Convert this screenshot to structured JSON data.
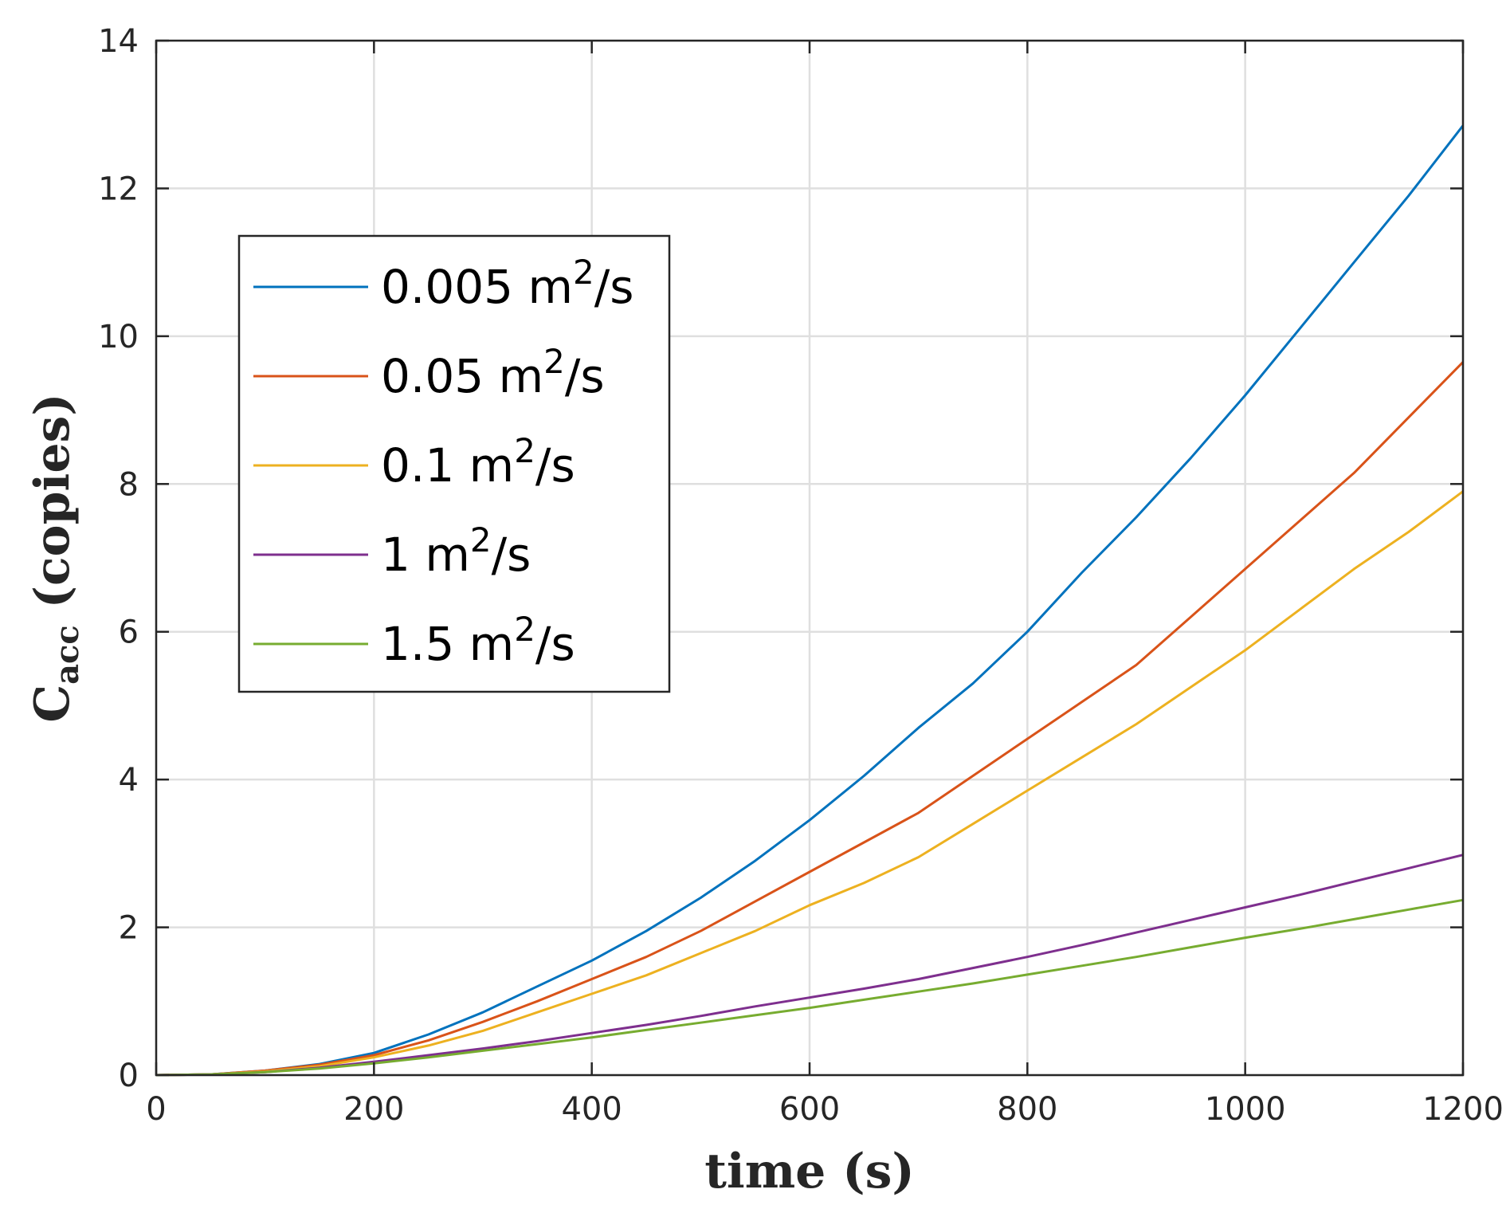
{
  "chart_data": {
    "type": "line",
    "title": "",
    "xlabel": "time (s)",
    "ylabel": {
      "main": "C",
      "subscript": "acc",
      "rest": " (copies)"
    },
    "xlim": [
      0,
      1200
    ],
    "ylim": [
      0,
      14
    ],
    "xticks": [
      0,
      200,
      400,
      600,
      800,
      1000,
      1200
    ],
    "yticks": [
      0,
      2,
      4,
      6,
      8,
      10,
      12,
      14
    ],
    "grid": true,
    "legend_position": "upper-left",
    "series": [
      {
        "name": "0.005 m²/s",
        "name_base": "0.005 m",
        "name_sup": "2",
        "name_tail": "/s",
        "color": "#0072BD",
        "x": [
          0,
          50,
          100,
          150,
          200,
          250,
          300,
          350,
          400,
          450,
          500,
          550,
          600,
          650,
          700,
          750,
          800,
          850,
          900,
          950,
          1000,
          1050,
          1100,
          1150,
          1200
        ],
        "y": [
          0,
          0.01,
          0.06,
          0.15,
          0.3,
          0.55,
          0.85,
          1.2,
          1.55,
          1.95,
          2.4,
          2.9,
          3.45,
          4.05,
          4.7,
          5.3,
          6.0,
          6.8,
          7.55,
          8.35,
          9.2,
          10.1,
          11.0,
          11.9,
          12.85
        ]
      },
      {
        "name": "0.05 m²/s",
        "name_base": "0.05 m",
        "name_sup": "2",
        "name_tail": "/s",
        "color": "#D95319",
        "x": [
          0,
          50,
          100,
          150,
          200,
          250,
          300,
          350,
          400,
          450,
          500,
          550,
          600,
          650,
          700,
          750,
          800,
          850,
          900,
          950,
          1000,
          1050,
          1100,
          1150,
          1200
        ],
        "y": [
          0,
          0.01,
          0.06,
          0.14,
          0.27,
          0.47,
          0.72,
          1.0,
          1.3,
          1.6,
          1.95,
          2.35,
          2.75,
          3.15,
          3.55,
          4.05,
          4.55,
          5.05,
          5.55,
          6.2,
          6.85,
          7.5,
          8.15,
          8.9,
          9.65
        ]
      },
      {
        "name": "0.1 m²/s",
        "name_base": "0.1 m",
        "name_sup": "2",
        "name_tail": "/s",
        "color": "#EDB120",
        "x": [
          0,
          50,
          100,
          150,
          200,
          250,
          300,
          350,
          400,
          450,
          500,
          550,
          600,
          650,
          700,
          750,
          800,
          850,
          900,
          950,
          1000,
          1050,
          1100,
          1150,
          1200
        ],
        "y": [
          0,
          0.01,
          0.05,
          0.12,
          0.24,
          0.4,
          0.6,
          0.85,
          1.1,
          1.35,
          1.65,
          1.95,
          2.3,
          2.6,
          2.95,
          3.4,
          3.85,
          4.3,
          4.75,
          5.25,
          5.75,
          6.3,
          6.85,
          7.35,
          7.9
        ]
      },
      {
        "name": "1 m²/s",
        "name_base": "1 m",
        "name_sup": "2",
        "name_tail": "/s",
        "color": "#7E2F8E",
        "x": [
          0,
          50,
          100,
          150,
          200,
          250,
          300,
          350,
          400,
          450,
          500,
          550,
          600,
          650,
          700,
          750,
          800,
          850,
          900,
          950,
          1000,
          1050,
          1100,
          1150,
          1200
        ],
        "y": [
          0,
          0.01,
          0.04,
          0.1,
          0.18,
          0.27,
          0.36,
          0.46,
          0.57,
          0.68,
          0.8,
          0.93,
          1.05,
          1.17,
          1.3,
          1.45,
          1.6,
          1.76,
          1.93,
          2.1,
          2.27,
          2.44,
          2.62,
          2.8,
          2.98
        ]
      },
      {
        "name": "1.5 m²/s",
        "name_base": "1.5 m",
        "name_sup": "2",
        "name_tail": "/s",
        "color": "#77AC30",
        "x": [
          0,
          50,
          100,
          150,
          200,
          250,
          300,
          350,
          400,
          450,
          500,
          550,
          600,
          650,
          700,
          750,
          800,
          850,
          900,
          950,
          1000,
          1050,
          1100,
          1150,
          1200
        ],
        "y": [
          0,
          0.01,
          0.04,
          0.09,
          0.16,
          0.24,
          0.33,
          0.42,
          0.51,
          0.61,
          0.71,
          0.81,
          0.91,
          1.02,
          1.13,
          1.24,
          1.36,
          1.48,
          1.6,
          1.73,
          1.86,
          1.98,
          2.11,
          2.24,
          2.37
        ]
      }
    ]
  }
}
